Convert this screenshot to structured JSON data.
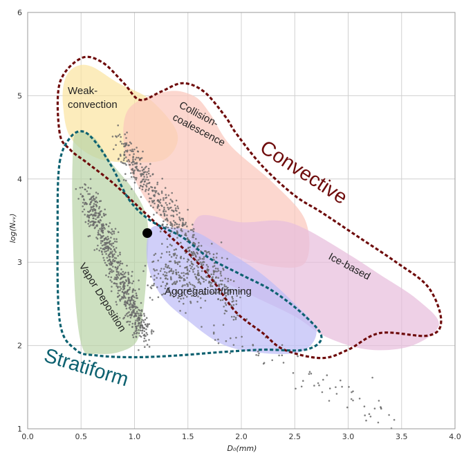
{
  "chart_data": {
    "type": "scatter",
    "xlabel": "D₀(mm)",
    "ylabel": "log(Nᵥᵥ)",
    "xlim": [
      0.0,
      4.0
    ],
    "ylim": [
      1,
      6
    ],
    "x_ticks": [
      "0.0",
      "0.5",
      "1.0",
      "1.5",
      "2.0",
      "2.5",
      "3.0",
      "3.5",
      "4.0"
    ],
    "y_ticks": [
      "1",
      "2",
      "3",
      "4",
      "5",
      "6"
    ],
    "grid": true,
    "highlight_point": {
      "x": 1.12,
      "y": 3.35
    },
    "regions": [
      {
        "name": "Weak-convection",
        "label_lines": [
          "Weak-",
          "convection"
        ],
        "color": "#fbe5a2",
        "polygon": [
          [
            0.35,
            5.2
          ],
          [
            0.45,
            5.35
          ],
          [
            0.6,
            5.35
          ],
          [
            0.85,
            5.15
          ],
          [
            1.15,
            4.95
          ],
          [
            1.4,
            4.55
          ],
          [
            1.3,
            4.25
          ],
          [
            1.0,
            4.2
          ],
          [
            0.65,
            4.25
          ],
          [
            0.4,
            4.5
          ],
          [
            0.33,
            4.9
          ]
        ]
      },
      {
        "name": "Collision-coalescence",
        "label_lines": [
          "Collision-",
          "coalescence"
        ],
        "color": "#fbc8bd",
        "polygon": [
          [
            0.95,
            4.85
          ],
          [
            1.3,
            5.05
          ],
          [
            1.55,
            5.0
          ],
          [
            1.7,
            4.8
          ],
          [
            1.9,
            4.4
          ],
          [
            2.3,
            3.95
          ],
          [
            2.6,
            3.5
          ],
          [
            2.6,
            3.0
          ],
          [
            2.3,
            2.95
          ],
          [
            1.9,
            3.1
          ],
          [
            1.5,
            3.3
          ],
          [
            1.2,
            3.6
          ],
          [
            1.0,
            4.0
          ],
          [
            0.9,
            4.4
          ]
        ]
      },
      {
        "name": "Ice-based",
        "label_lines": [
          "Ice-based"
        ],
        "color": "#e8bedd",
        "polygon": [
          [
            1.6,
            3.55
          ],
          [
            2.0,
            3.48
          ],
          [
            2.35,
            3.5
          ],
          [
            2.6,
            3.4
          ],
          [
            3.0,
            3.1
          ],
          [
            3.3,
            2.85
          ],
          [
            3.65,
            2.55
          ],
          [
            3.85,
            2.25
          ],
          [
            3.6,
            2.0
          ],
          [
            3.2,
            1.95
          ],
          [
            2.8,
            2.1
          ],
          [
            2.5,
            2.35
          ],
          [
            2.1,
            2.6
          ],
          [
            1.8,
            2.8
          ],
          [
            1.55,
            3.1
          ]
        ]
      },
      {
        "name": "Vapor Deposition",
        "label_lines": [
          "Vapor Deposition"
        ],
        "color": "#bad4a8",
        "polygon": [
          [
            0.45,
            4.55
          ],
          [
            0.62,
            4.5
          ],
          [
            0.78,
            4.2
          ],
          [
            1.0,
            3.85
          ],
          [
            1.12,
            3.5
          ],
          [
            1.12,
            3.0
          ],
          [
            1.08,
            2.4
          ],
          [
            1.02,
            2.05
          ],
          [
            0.85,
            1.92
          ],
          [
            0.65,
            1.9
          ],
          [
            0.52,
            1.95
          ],
          [
            0.45,
            2.5
          ],
          [
            0.42,
            3.5
          ],
          [
            0.42,
            4.2
          ]
        ]
      },
      {
        "name": "Aggregation/riming",
        "label_lines": [
          "Aggregation/riming"
        ],
        "color": "#bebdf6",
        "polygon": [
          [
            1.15,
            3.4
          ],
          [
            1.35,
            3.42
          ],
          [
            1.6,
            3.35
          ],
          [
            1.85,
            3.15
          ],
          [
            2.2,
            2.85
          ],
          [
            2.5,
            2.5
          ],
          [
            2.7,
            2.2
          ],
          [
            2.6,
            1.95
          ],
          [
            2.3,
            1.9
          ],
          [
            1.85,
            2.0
          ],
          [
            1.5,
            2.3
          ],
          [
            1.25,
            2.6
          ],
          [
            1.12,
            3.0
          ]
        ]
      }
    ],
    "classes": [
      {
        "name": "Convective",
        "color": "#6e0b0b",
        "polygon": [
          [
            0.3,
            4.55
          ],
          [
            0.3,
            5.15
          ],
          [
            0.5,
            5.45
          ],
          [
            0.7,
            5.4
          ],
          [
            0.9,
            5.15
          ],
          [
            1.05,
            4.95
          ],
          [
            1.25,
            5.05
          ],
          [
            1.45,
            5.15
          ],
          [
            1.65,
            5.05
          ],
          [
            1.85,
            4.75
          ],
          [
            1.95,
            4.55
          ],
          [
            2.2,
            4.15
          ],
          [
            2.5,
            3.8
          ],
          [
            2.75,
            3.6
          ],
          [
            3.1,
            3.3
          ],
          [
            3.45,
            3.0
          ],
          [
            3.75,
            2.7
          ],
          [
            3.87,
            2.3
          ],
          [
            3.75,
            2.12
          ],
          [
            3.3,
            2.15
          ],
          [
            3.0,
            1.95
          ],
          [
            2.75,
            1.85
          ],
          [
            2.4,
            1.95
          ],
          [
            2.2,
            2.15
          ],
          [
            1.95,
            2.4
          ],
          [
            1.75,
            2.75
          ],
          [
            1.55,
            3.05
          ],
          [
            1.3,
            3.35
          ],
          [
            1.05,
            3.65
          ],
          [
            0.8,
            3.95
          ],
          [
            0.55,
            4.2
          ],
          [
            0.4,
            4.35
          ]
        ]
      },
      {
        "name": "Stratiform",
        "color": "#0d6170",
        "polygon": [
          [
            0.3,
            4.2
          ],
          [
            0.4,
            4.5
          ],
          [
            0.52,
            4.57
          ],
          [
            0.65,
            4.42
          ],
          [
            0.8,
            4.12
          ],
          [
            0.95,
            3.75
          ],
          [
            1.15,
            3.5
          ],
          [
            1.45,
            3.3
          ],
          [
            1.7,
            3.05
          ],
          [
            2.0,
            2.85
          ],
          [
            2.3,
            2.65
          ],
          [
            2.6,
            2.35
          ],
          [
            2.75,
            2.1
          ],
          [
            2.6,
            1.95
          ],
          [
            2.2,
            1.95
          ],
          [
            1.8,
            1.92
          ],
          [
            1.4,
            1.88
          ],
          [
            1.0,
            1.86
          ],
          [
            0.65,
            1.88
          ],
          [
            0.45,
            1.95
          ],
          [
            0.3,
            2.3
          ],
          [
            0.28,
            3.5
          ]
        ]
      }
    ],
    "class_labels": [
      "Convective",
      "Stratiform"
    ]
  }
}
